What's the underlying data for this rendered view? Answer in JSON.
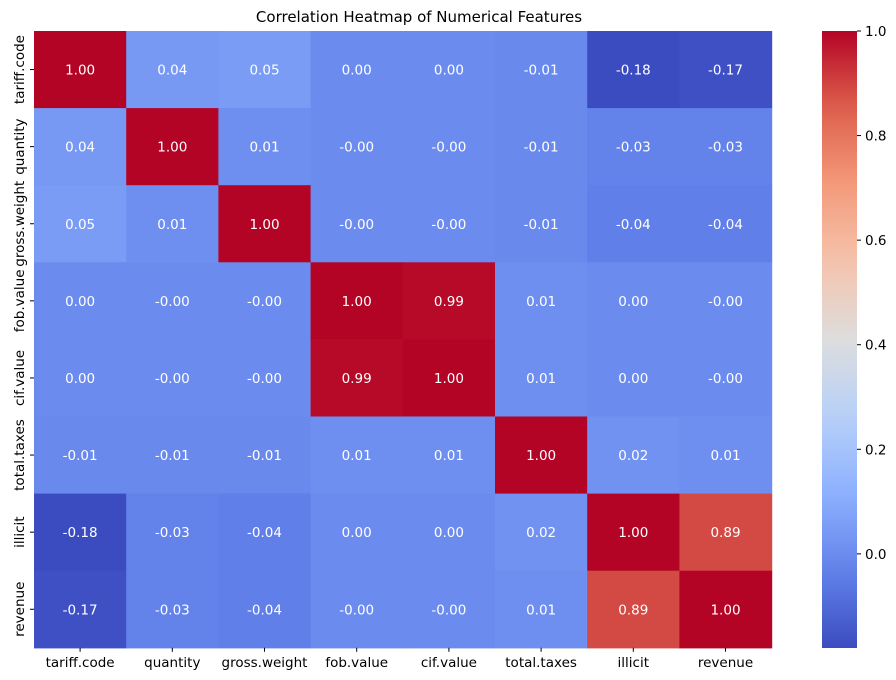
{
  "chart_data": {
    "type": "heatmap",
    "title": "Correlation Heatmap of Numerical Features",
    "x_labels": [
      "tariff.code",
      "quantity",
      "gross.weight",
      "fob.value",
      "cif.value",
      "total.taxes",
      "illicit",
      "revenue"
    ],
    "y_labels": [
      "tariff.code",
      "quantity",
      "gross.weight",
      "fob.value",
      "cif.value",
      "total.taxes",
      "illicit",
      "revenue"
    ],
    "values": [
      [
        1.0,
        0.04,
        0.05,
        0.0,
        0.0,
        -0.01,
        -0.18,
        -0.17
      ],
      [
        0.04,
        1.0,
        0.01,
        -0.0,
        -0.0,
        -0.01,
        -0.03,
        -0.03
      ],
      [
        0.05,
        0.01,
        1.0,
        -0.0,
        -0.0,
        -0.01,
        -0.04,
        -0.04
      ],
      [
        0.0,
        -0.0,
        -0.0,
        1.0,
        0.99,
        0.01,
        0.0,
        -0.0
      ],
      [
        0.0,
        -0.0,
        -0.0,
        0.99,
        1.0,
        0.01,
        0.0,
        -0.0
      ],
      [
        -0.01,
        -0.01,
        -0.01,
        0.01,
        0.01,
        1.0,
        0.02,
        0.01
      ],
      [
        -0.18,
        -0.03,
        -0.04,
        0.0,
        0.0,
        0.02,
        1.0,
        0.89
      ],
      [
        -0.17,
        -0.03,
        -0.04,
        -0.0,
        -0.0,
        0.01,
        0.89,
        1.0
      ]
    ],
    "annotations": [
      [
        "1.00",
        "0.04",
        "0.05",
        "0.00",
        "0.00",
        "-0.01",
        "-0.18",
        "-0.17"
      ],
      [
        "0.04",
        "1.00",
        "0.01",
        "-0.00",
        "-0.00",
        "-0.01",
        "-0.03",
        "-0.03"
      ],
      [
        "0.05",
        "0.01",
        "1.00",
        "-0.00",
        "-0.00",
        "-0.01",
        "-0.04",
        "-0.04"
      ],
      [
        "0.00",
        "-0.00",
        "-0.00",
        "1.00",
        "0.99",
        "0.01",
        "0.00",
        "-0.00"
      ],
      [
        "0.00",
        "-0.00",
        "-0.00",
        "0.99",
        "1.00",
        "0.01",
        "0.00",
        "-0.00"
      ],
      [
        "-0.01",
        "-0.01",
        "-0.01",
        "0.01",
        "0.01",
        "1.00",
        "0.02",
        "0.01"
      ],
      [
        "-0.18",
        "-0.03",
        "-0.04",
        "0.00",
        "0.00",
        "0.02",
        "1.00",
        "0.89"
      ],
      [
        "-0.17",
        "-0.03",
        "-0.04",
        "-0.00",
        "-0.00",
        "0.01",
        "0.89",
        "1.00"
      ]
    ],
    "colormap": "coolwarm",
    "vmin": -0.18,
    "vmax": 1.0,
    "colorbar": {
      "ticks": [
        0.0,
        0.2,
        0.4,
        0.6,
        0.8,
        1.0
      ],
      "tick_labels": [
        "0.0",
        "0.2",
        "0.4",
        "0.6",
        "0.8",
        "1.0"
      ],
      "placement": "right"
    },
    "grid": false
  }
}
